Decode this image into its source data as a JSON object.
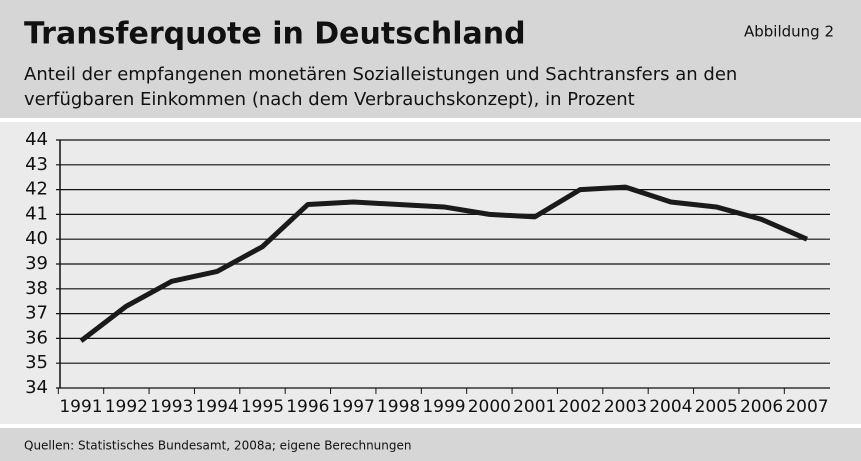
{
  "chart_data": {
    "type": "line",
    "title": "Transferquote in Deutschland",
    "figure_label": "Abbildung 2",
    "subtitle": [
      "Anteil der empfangenen monetären Sozialleistungen und Sachtransfers an den",
      "verfügbaren Einkommen (nach dem Verbrauchskonzept), in Prozent"
    ],
    "source": "Quellen: Statistisches Bundesamt, 2008a; eigene Berechnungen",
    "categories": [
      "1991",
      "1992",
      "1993",
      "1994",
      "1995",
      "1996",
      "1997",
      "1998",
      "1999",
      "2000",
      "2001",
      "2002",
      "2003",
      "2004",
      "2005",
      "2006",
      "2007"
    ],
    "values": [
      35.9,
      37.3,
      38.3,
      38.7,
      39.7,
      41.4,
      41.5,
      41.4,
      41.3,
      41.0,
      40.9,
      42.0,
      42.1,
      41.5,
      41.3,
      40.8,
      40.0
    ],
    "color": "#1a1a1a",
    "ylim": [
      34,
      44
    ],
    "yticks": [
      34,
      35,
      36,
      37,
      38,
      39,
      40,
      41,
      42,
      43,
      44
    ],
    "grid": true
  }
}
